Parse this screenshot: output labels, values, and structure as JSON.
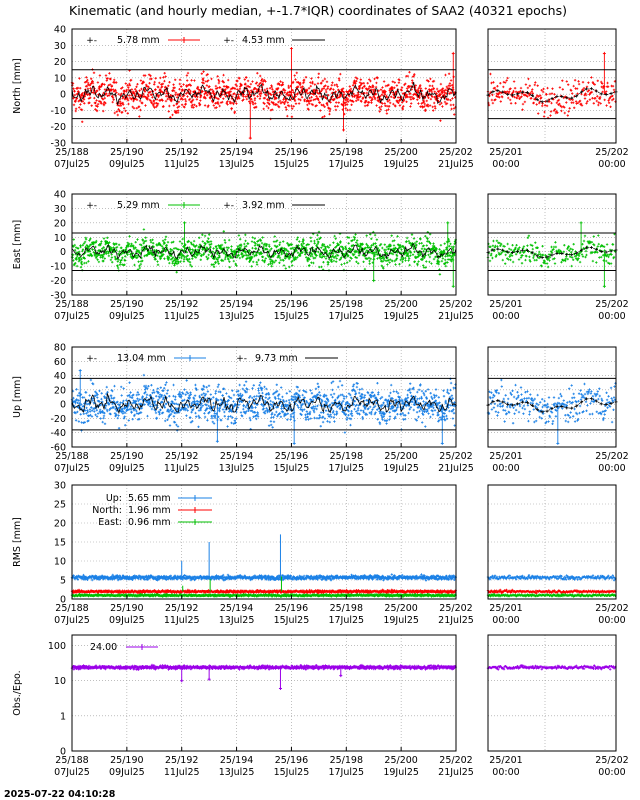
{
  "title": "Kinematic (and hourly median, +-1.7*IQR) coordinates of SAA2 (40321 epochs)",
  "timestamp": "2025-07-22 04:10:28",
  "colors": {
    "north": "#ff0000",
    "east": "#00c000",
    "up": "#1a80e6",
    "obs": "#9b00e8",
    "median": "#000000",
    "grid": "#999999"
  },
  "left_ticks": [
    {
      "day": "25/188",
      "date": "07Jul25"
    },
    {
      "day": "25/190",
      "date": "09Jul25"
    },
    {
      "day": "25/192",
      "date": "11Jul25"
    },
    {
      "day": "25/194",
      "date": "13Jul25"
    },
    {
      "day": "25/196",
      "date": "15Jul25"
    },
    {
      "day": "25/198",
      "date": "17Jul25"
    },
    {
      "day": "25/200",
      "date": "19Jul25"
    },
    {
      "day": "25/202",
      "date": "21Jul25"
    }
  ],
  "right_ticks": [
    {
      "day": "25/201",
      "date": "00:00"
    },
    {
      "day": "25/202",
      "date": "00:00"
    }
  ],
  "chart_data": [
    {
      "type": "scatter",
      "name": "north",
      "ylabel": "North [mm]",
      "ylim": [
        -30,
        40
      ],
      "yticks": [
        -30,
        -20,
        -10,
        0,
        10,
        20,
        30,
        40
      ],
      "xlim_days": [
        188,
        202
      ],
      "xlim_right_days": [
        200.9,
        202
      ],
      "iqr_lines": [
        15,
        -15
      ],
      "legend": [
        {
          "label": "5.78 mm",
          "kind": "kinematic"
        },
        {
          "label": "4.53 mm",
          "kind": "median"
        }
      ],
      "amplitude": 7,
      "median_amp": 3.5,
      "spikes": [
        {
          "day": 196.0,
          "value": 28
        },
        {
          "day": 194.5,
          "value": -27
        },
        {
          "day": 197.9,
          "value": -22
        },
        {
          "day": 201.9,
          "value": 25
        }
      ]
    },
    {
      "type": "scatter",
      "name": "east",
      "ylabel": "East [mm]",
      "ylim": [
        -30,
        40
      ],
      "yticks": [
        -30,
        -20,
        -10,
        0,
        10,
        20,
        30,
        40
      ],
      "xlim_days": [
        188,
        202
      ],
      "xlim_right_days": [
        200.9,
        202
      ],
      "iqr_lines": [
        13,
        -13
      ],
      "legend": [
        {
          "label": "5.29 mm",
          "kind": "kinematic"
        },
        {
          "label": "3.92 mm",
          "kind": "median"
        }
      ],
      "amplitude": 6.5,
      "median_amp": 3,
      "spikes": [
        {
          "day": 192.1,
          "value": 20
        },
        {
          "day": 201.7,
          "value": 20
        },
        {
          "day": 199.0,
          "value": -20
        },
        {
          "day": 201.9,
          "value": -24
        }
      ]
    },
    {
      "type": "scatter",
      "name": "up",
      "ylabel": "Up [mm]",
      "ylim": [
        -60,
        80
      ],
      "yticks": [
        -60,
        -40,
        -20,
        0,
        20,
        40,
        60,
        80
      ],
      "xlim_days": [
        188,
        202
      ],
      "xlim_right_days": [
        200.9,
        202
      ],
      "iqr_lines": [
        36,
        -36
      ],
      "legend": [
        {
          "label": "13.04 mm",
          "kind": "kinematic"
        },
        {
          "label": "9.73 mm",
          "kind": "median"
        }
      ],
      "amplitude": 17,
      "median_amp": 8,
      "spikes": [
        {
          "day": 188.3,
          "value": 47
        },
        {
          "day": 193.3,
          "value": -52
        },
        {
          "day": 196.1,
          "value": -55
        },
        {
          "day": 201.5,
          "value": -55
        }
      ]
    },
    {
      "type": "scatter",
      "name": "rms",
      "ylabel": "RMS [mm]",
      "ylim": [
        0,
        30
      ],
      "yticks": [
        0,
        5,
        10,
        15,
        20,
        25,
        30
      ],
      "xlim_days": [
        188,
        202
      ],
      "xlim_right_days": [
        200.9,
        202
      ],
      "legend": [
        {
          "label": "Up:",
          "value": "5.65 mm",
          "color": "#1a80e6"
        },
        {
          "label": "North:",
          "value": "1.96 mm",
          "color": "#ff0000"
        },
        {
          "label": "East:",
          "value": "0.96 mm",
          "color": "#00c000"
        }
      ],
      "series": [
        {
          "name": "Up",
          "mean": 5.65,
          "spread": 0.9
        },
        {
          "name": "North",
          "mean": 1.96,
          "spread": 0.5
        },
        {
          "name": "East",
          "mean": 0.96,
          "spread": 0.4
        }
      ],
      "spikes": [
        {
          "day": 193.0,
          "value": 15
        },
        {
          "day": 195.6,
          "value": 17
        },
        {
          "day": 192.0,
          "value": 10
        }
      ]
    },
    {
      "type": "scatter",
      "name": "obs",
      "ylabel": "Obs./Epo.",
      "yscale": "log",
      "ylim": [
        0.1,
        200
      ],
      "ytick_labels": [
        "0",
        "1",
        "10",
        "100"
      ],
      "ytick_values": [
        0.1,
        1,
        10,
        100
      ],
      "xlim_days": [
        188,
        202
      ],
      "xlim_right_days": [
        200.9,
        202
      ],
      "legend": [
        {
          "label": "24.00",
          "kind": "kinematic"
        }
      ],
      "mean": 24,
      "spikes": [
        {
          "day": 195.6,
          "value": 6
        },
        {
          "day": 192.0,
          "value": 10
        },
        {
          "day": 193.0,
          "value": 11
        },
        {
          "day": 197.8,
          "value": 14
        }
      ]
    }
  ]
}
